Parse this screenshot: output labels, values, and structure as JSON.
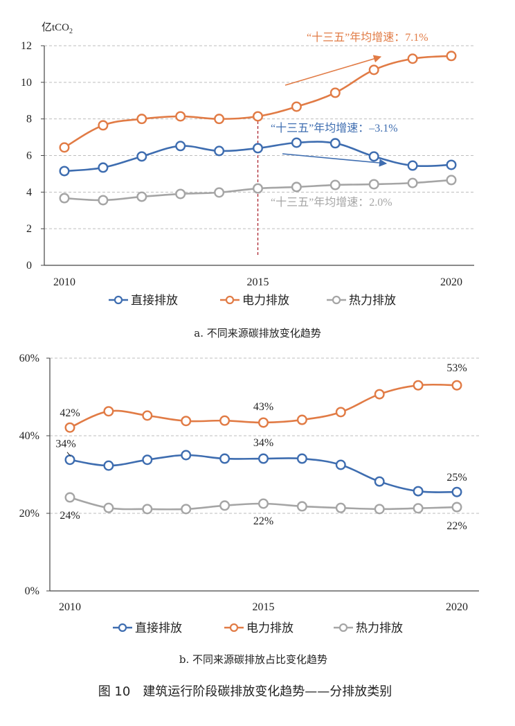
{
  "colors": {
    "direct": "#3e6db0",
    "power": "#e17b45",
    "heat": "#a5a5a5",
    "marker_line_2015": "#b0303a",
    "grid": "#bdbdbd",
    "axis": "#444444"
  },
  "figure_caption": "图 10　建筑运行阶段碳排放变化趋势——分排放类别",
  "chart_data": [
    {
      "id": "a",
      "type": "line",
      "subcaption": "a. 不同来源碳排放变化趋势",
      "ylabel": "亿tCO",
      "ylabel_sub": "2",
      "x": [
        2010,
        2011,
        2012,
        2013,
        2014,
        2015,
        2016,
        2017,
        2018,
        2019,
        2020
      ],
      "x_tick_labels": [
        "2010",
        "2015",
        "2020"
      ],
      "x_tick_values": [
        2010,
        2015,
        2020
      ],
      "ylim": [
        0,
        12
      ],
      "y_ticks": [
        0,
        2,
        4,
        6,
        8,
        10,
        12
      ],
      "y_tick_labels": [
        "0",
        "2",
        "4",
        "6",
        "8",
        "10",
        "12"
      ],
      "grid": true,
      "vertical_marker_x": 2015,
      "series": [
        {
          "key": "direct",
          "name": "直接排放",
          "values": [
            5.15,
            5.34,
            5.95,
            6.52,
            6.25,
            6.4,
            6.7,
            6.67,
            5.95,
            5.45,
            5.49
          ]
        },
        {
          "key": "power",
          "name": "电力排放",
          "values": [
            6.44,
            7.65,
            8.0,
            8.14,
            8.0,
            8.14,
            8.67,
            9.43,
            10.68,
            11.29,
            11.44
          ]
        },
        {
          "key": "heat",
          "name": "热力排放",
          "values": [
            3.67,
            3.56,
            3.75,
            3.9,
            3.98,
            4.2,
            4.28,
            4.39,
            4.43,
            4.5,
            4.66
          ]
        }
      ],
      "annotations": [
        {
          "key": "power",
          "text": "“十三五”年均增速：7.1%"
        },
        {
          "key": "direct",
          "text": "“十三五”年均增速：–3.1%"
        },
        {
          "key": "heat",
          "text": "“十三五”年均增速：2.0%"
        }
      ],
      "legend": {
        "placement": "bottom",
        "items": [
          "直接排放",
          "电力排放",
          "热力排放"
        ]
      }
    },
    {
      "id": "b",
      "type": "line",
      "subcaption": "b. 不同来源碳排放占比变化趋势",
      "ylabel": "",
      "x": [
        2010,
        2011,
        2012,
        2013,
        2014,
        2015,
        2016,
        2017,
        2018,
        2019,
        2020
      ],
      "x_tick_labels": [
        "2010",
        "2015",
        "2020"
      ],
      "x_tick_values": [
        2010,
        2015,
        2020
      ],
      "ylim": [
        0,
        60
      ],
      "y_ticks": [
        0,
        20,
        40,
        60
      ],
      "y_tick_labels": [
        "0%",
        "20%",
        "40%",
        "60%"
      ],
      "grid": true,
      "series": [
        {
          "key": "direct",
          "name": "直接排放",
          "values": [
            33.8,
            32.3,
            33.8,
            35.0,
            34.1,
            34.1,
            34.1,
            32.5,
            28.2,
            25.7,
            25.5
          ]
        },
        {
          "key": "power",
          "name": "电力排放",
          "values": [
            42.1,
            46.3,
            45.2,
            43.8,
            43.9,
            43.4,
            44.1,
            46.1,
            50.7,
            53.0,
            53.0
          ]
        },
        {
          "key": "heat",
          "name": "热力排放",
          "values": [
            24.1,
            21.4,
            21.1,
            21.1,
            22.0,
            22.5,
            21.8,
            21.4,
            21.1,
            21.3,
            21.6
          ]
        }
      ],
      "data_labels": [
        {
          "key": "power",
          "x": 2010,
          "text": "42%"
        },
        {
          "key": "power",
          "x": 2015,
          "text": "43%"
        },
        {
          "key": "power",
          "x": 2020,
          "text": "53%"
        },
        {
          "key": "direct",
          "x": 2010,
          "text": "34%"
        },
        {
          "key": "direct",
          "x": 2015,
          "text": "34%"
        },
        {
          "key": "direct",
          "x": 2020,
          "text": "25%"
        },
        {
          "key": "heat",
          "x": 2010,
          "text": "24%"
        },
        {
          "key": "heat",
          "x": 2015,
          "text": "22%"
        },
        {
          "key": "heat",
          "x": 2020,
          "text": "22%"
        }
      ],
      "legend": {
        "placement": "bottom",
        "items": [
          "直接排放",
          "电力排放",
          "热力排放"
        ]
      }
    }
  ]
}
